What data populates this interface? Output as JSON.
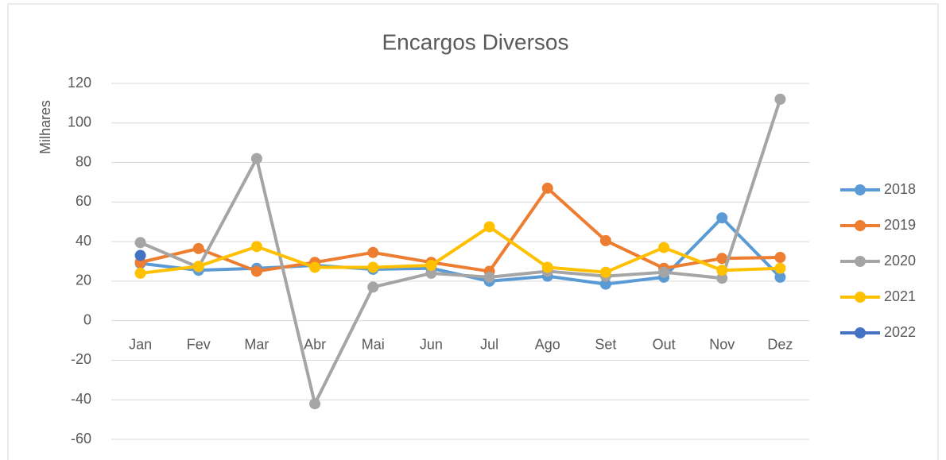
{
  "chart_data": {
    "type": "line",
    "title": "Encargos Diversos",
    "y_label": "Milhares",
    "categories": [
      "Jan",
      "Fev",
      "Mar",
      "Abr",
      "Mai",
      "Jun",
      "Jul",
      "Ago",
      "Set",
      "Out",
      "Nov",
      "Dez"
    ],
    "ylim": [
      -60,
      120
    ],
    "yticks": [
      -60,
      -40,
      -20,
      0,
      20,
      40,
      60,
      80,
      100,
      120
    ],
    "grid": true,
    "legend": "right",
    "series": [
      {
        "name": "2018",
        "color": "#5B9BD5",
        "values": [
          29,
          25.5,
          26.5,
          28,
          26,
          26.5,
          20,
          22.5,
          18.5,
          22,
          52,
          22
        ]
      },
      {
        "name": "2019",
        "color": "#ED7D31",
        "values": [
          29.5,
          36.5,
          25,
          29.5,
          34.5,
          29.5,
          25,
          67,
          40.5,
          26.5,
          31.5,
          32
        ]
      },
      {
        "name": "2020",
        "color": "#A5A5A5",
        "values": [
          39.5,
          27,
          82,
          -42,
          17,
          24,
          22,
          25,
          22.5,
          24.5,
          21.5,
          112
        ]
      },
      {
        "name": "2021",
        "color": "#FFC000",
        "values": [
          24,
          27.5,
          37.5,
          27,
          27,
          28,
          47.5,
          27,
          24.5,
          37,
          25.5,
          26.5
        ]
      },
      {
        "name": "2022",
        "color": "#4472C4",
        "values": [
          33,
          null,
          null,
          null,
          null,
          null,
          null,
          null,
          null,
          null,
          null,
          null
        ]
      }
    ]
  }
}
